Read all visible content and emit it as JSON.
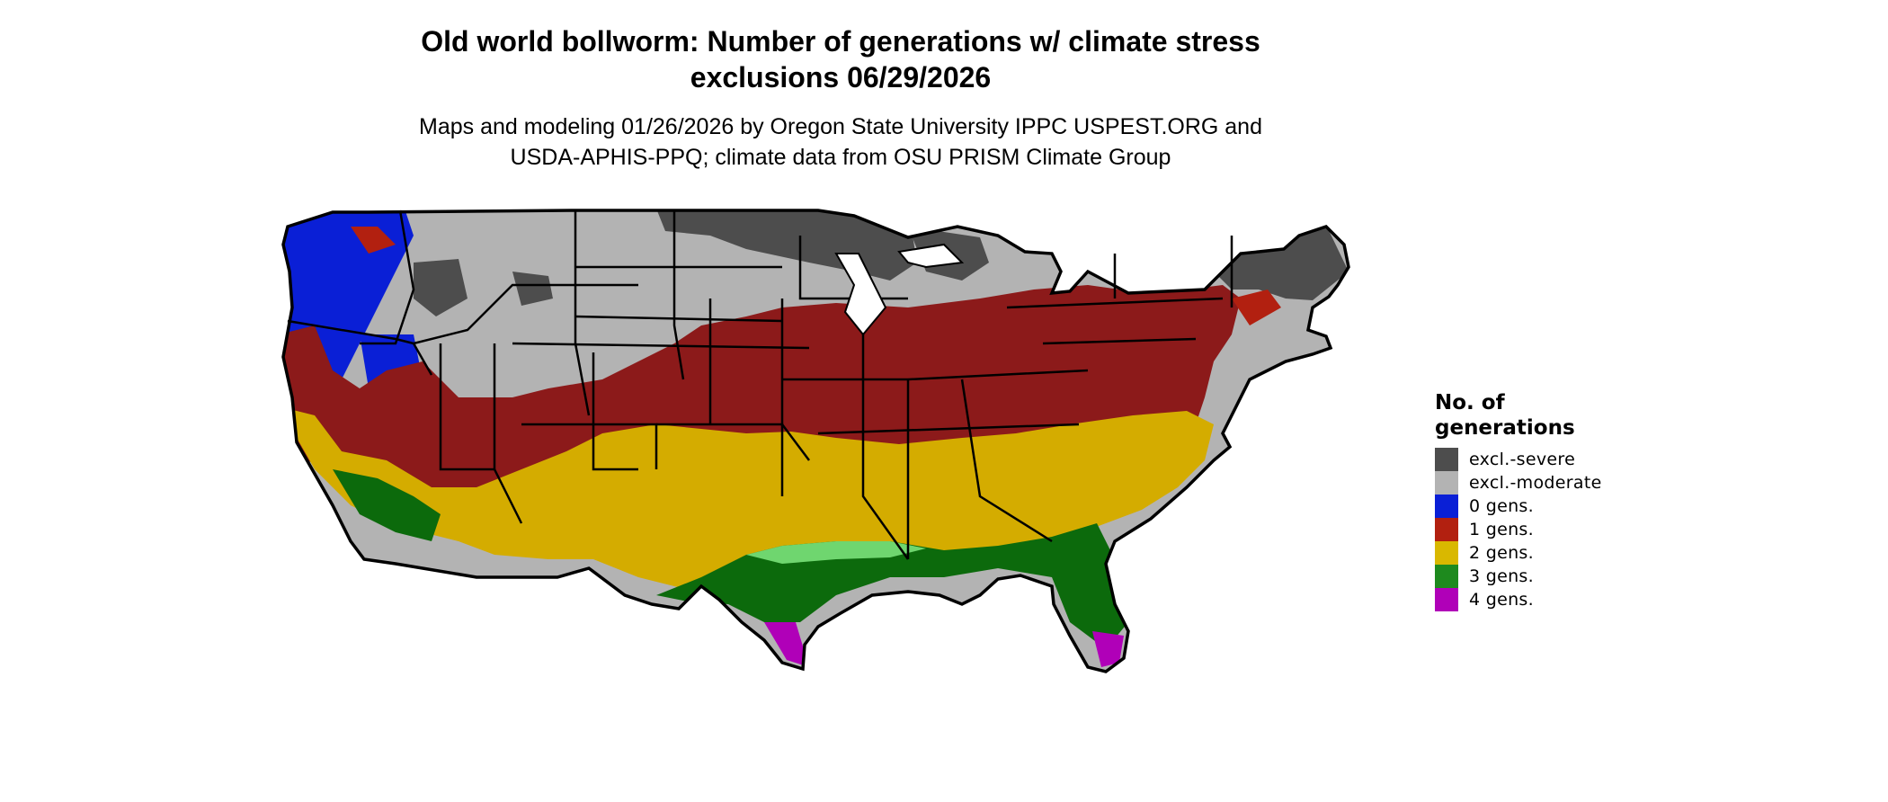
{
  "title": "Old world bollworm: Number of generations w/ climate stress exclusions 06/29/2026",
  "title_line1": "Old world bollworm: Number of generations w/ climate stress",
  "title_line2": "exclusions 06/29/2026",
  "subtitle_line1": "Maps and modeling 01/26/2026 by Oregon State University IPPC USPEST.ORG and",
  "subtitle_line2": "USDA-APHIS-PPQ; climate data from OSU PRISM Climate Group",
  "legend": {
    "title_line1": "No. of",
    "title_line2": "generations",
    "items": [
      {
        "label": "excl.-severe",
        "color": "#4d4d4d"
      },
      {
        "label": "excl.-moderate",
        "color": "#b3b3b3"
      },
      {
        "label": "0 gens.",
        "color": "#0a1fd6"
      },
      {
        "label": "1 gens.",
        "color": "#b22010"
      },
      {
        "label": "2 gens.",
        "color": "#d9b800"
      },
      {
        "label": "3 gens.",
        "color": "#1e8a1e"
      },
      {
        "label": "4 gens.",
        "color": "#b000b8"
      }
    ]
  },
  "map_colors": {
    "excl_severe": "#4d4d4d",
    "excl_moderate": "#b3b3b3",
    "gen0": "#0a1fd6",
    "gen1": "#8c1a1a",
    "gen2": "#d4ac00",
    "gen3": "#0c6a0c",
    "gen3_light": "#6fd66f",
    "gen4": "#b000b8",
    "boundary": "#000000"
  }
}
